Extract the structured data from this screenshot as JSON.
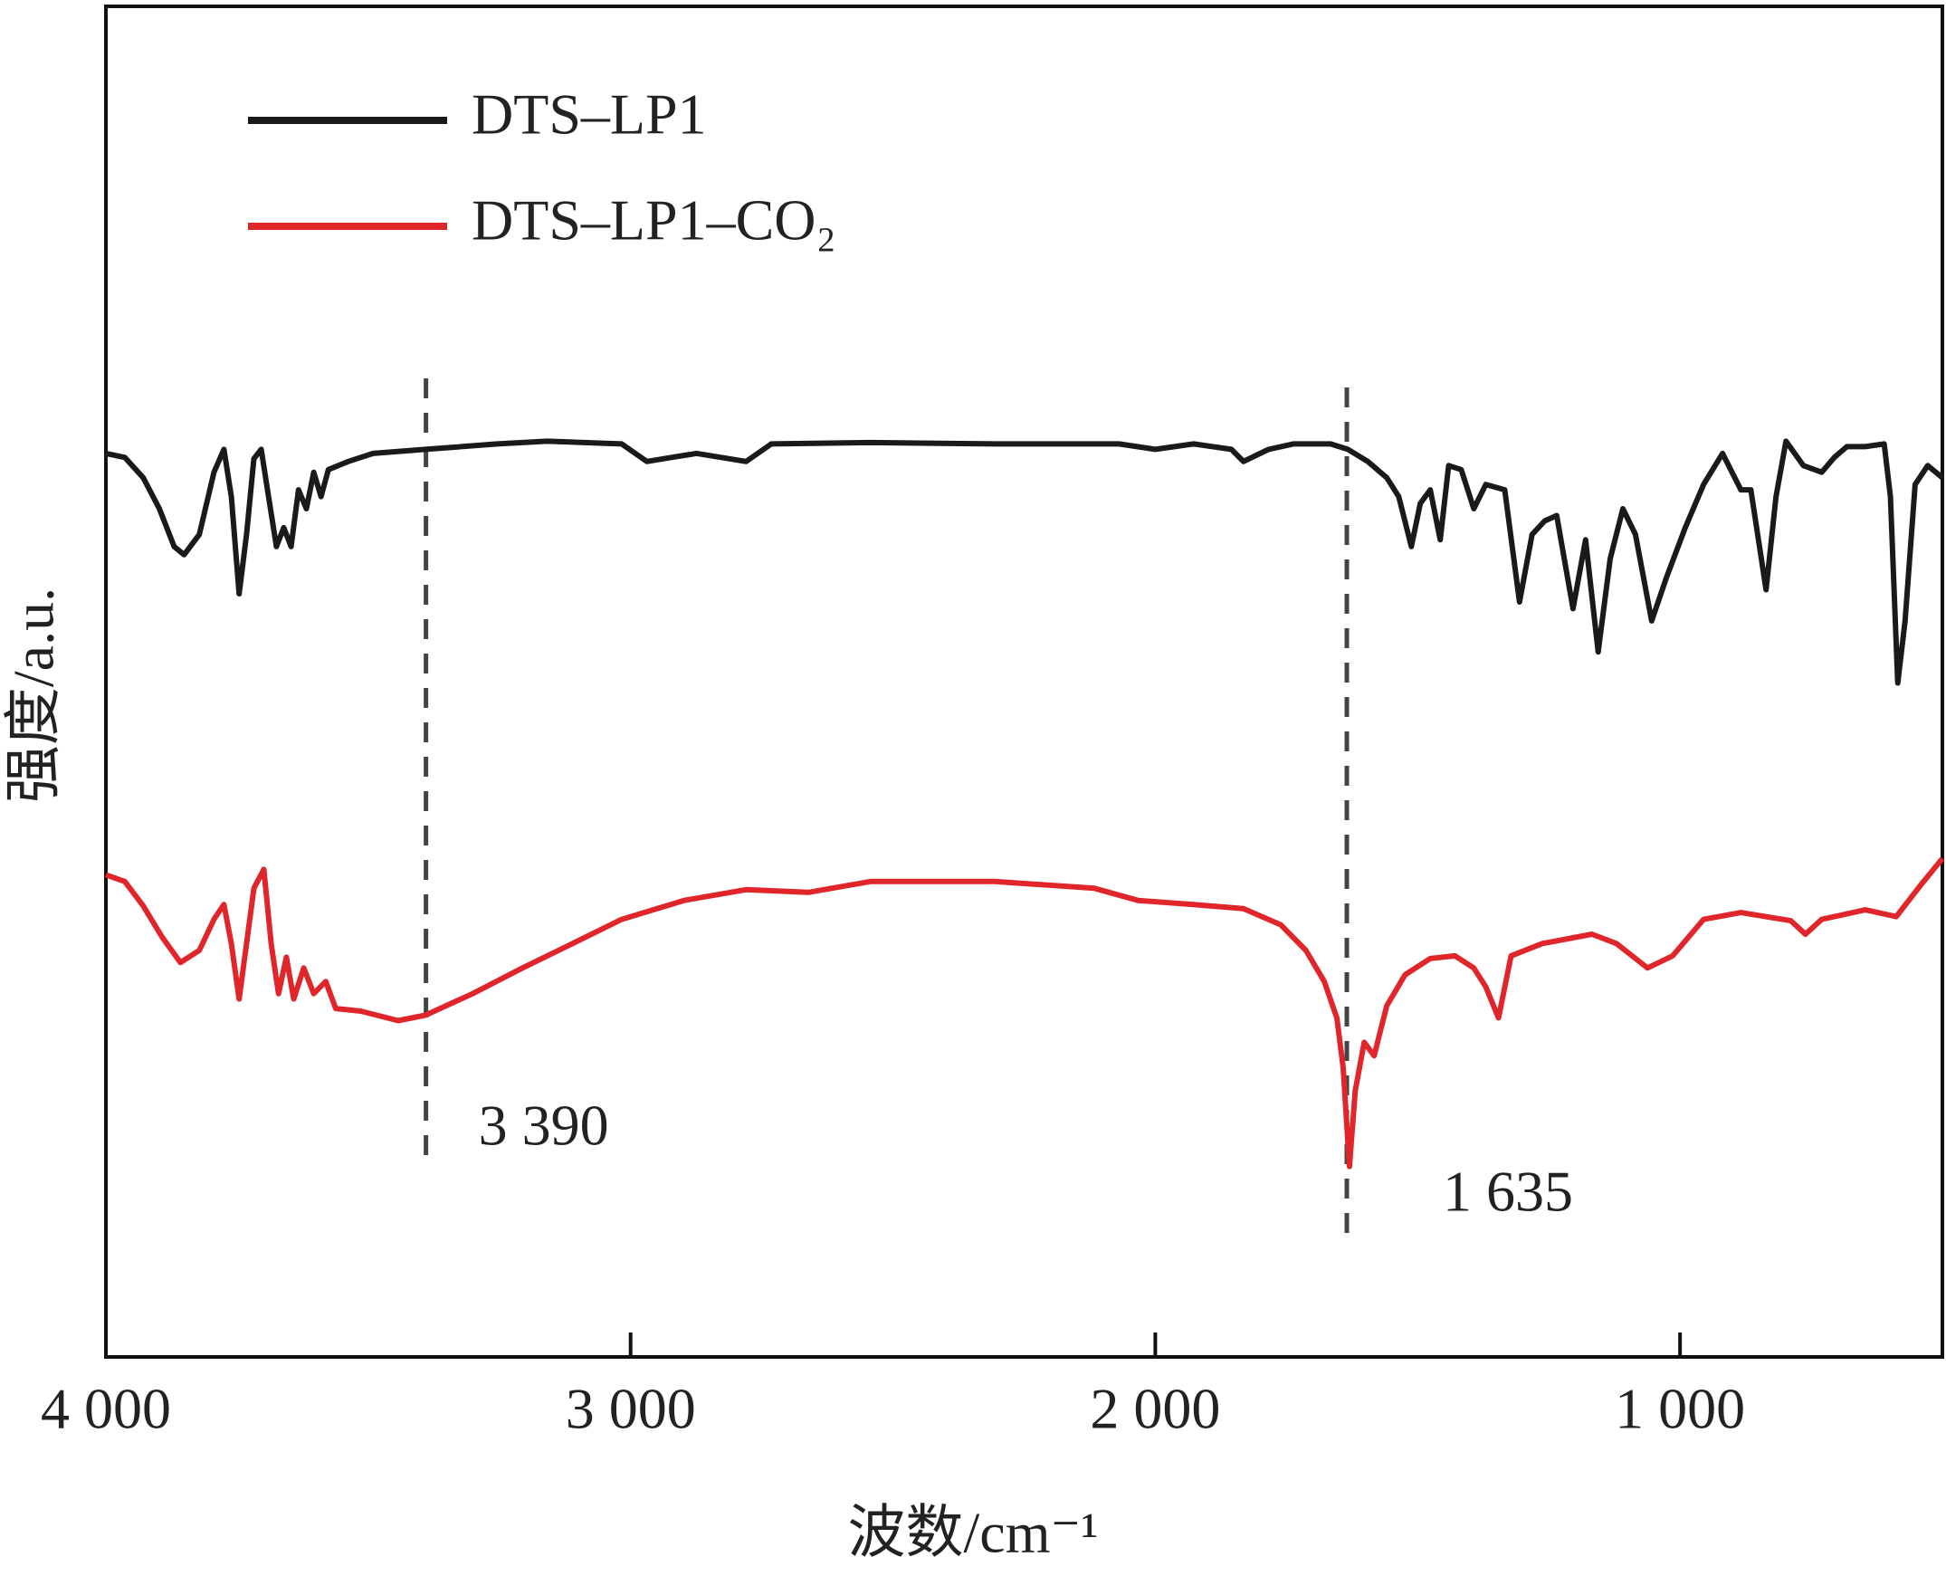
{
  "chart_data": {
    "type": "line",
    "x_label": "波数/cm⁻¹",
    "y_label": "强度/a.u.",
    "xlim": [
      4000,
      500
    ],
    "ylim": [
      0,
      100
    ],
    "xticks": [
      {
        "value": 4000,
        "label": "4 000"
      },
      {
        "value": 3000,
        "label": "3 000"
      },
      {
        "value": 2000,
        "label": "2 000"
      },
      {
        "value": 1000,
        "label": "1 000"
      }
    ],
    "legend": "upper left",
    "annotations": [
      {
        "value": 3390,
        "label": "3 390"
      },
      {
        "value": 1635,
        "label": "1 635"
      }
    ],
    "series": [
      {
        "name": "DTS–LP1",
        "color": "#1a1a1a",
        "x": [
          4000,
          3964,
          3929,
          3898,
          3870,
          3851,
          3822,
          3794,
          3775,
          3761,
          3746,
          3732,
          3718,
          3704,
          3690,
          3675,
          3661,
          3647,
          3633,
          3618,
          3604,
          3590,
          3576,
          3538,
          3491,
          3391,
          3254,
          3159,
          3017,
          2969,
          2922,
          2874,
          2780,
          2732,
          2543,
          2306,
          2069,
          2000,
          1927,
          1855,
          1832,
          1784,
          1737,
          1666,
          1633,
          1595,
          1559,
          1536,
          1512,
          1495,
          1476,
          1457,
          1441,
          1417,
          1393,
          1370,
          1334,
          1306,
          1282,
          1258,
          1235,
          1204,
          1180,
          1156,
          1133,
          1109,
          1085,
          1054,
          1026,
          990,
          955,
          919,
          884,
          865,
          836,
          817,
          798,
          765,
          730,
          706,
          682,
          647,
          611,
          599,
          585,
          571,
          552,
          528,
          500
        ],
        "values": [
          66.9,
          66.6,
          65.1,
          62.8,
          60.0,
          59.4,
          60.9,
          65.5,
          67.2,
          63.7,
          56.5,
          60.9,
          66.5,
          67.2,
          63.7,
          60.0,
          61.4,
          60.0,
          64.2,
          62.8,
          65.5,
          63.7,
          65.7,
          66.3,
          66.9,
          67.2,
          67.6,
          67.8,
          67.6,
          66.3,
          66.6,
          66.9,
          66.3,
          67.6,
          67.7,
          67.6,
          67.6,
          67.2,
          67.6,
          67.2,
          66.3,
          67.2,
          67.6,
          67.6,
          67.2,
          66.3,
          65.1,
          63.7,
          60.0,
          63.2,
          64.2,
          60.5,
          66.0,
          65.7,
          62.8,
          64.6,
          64.2,
          55.9,
          60.9,
          61.9,
          62.3,
          55.4,
          60.5,
          52.2,
          59.1,
          62.8,
          60.9,
          54.5,
          57.7,
          61.4,
          64.6,
          66.9,
          64.2,
          64.2,
          56.8,
          63.7,
          67.8,
          66.0,
          65.5,
          66.6,
          67.4,
          67.4,
          67.6,
          63.7,
          49.9,
          54.5,
          64.6,
          66.0,
          65.1
        ]
      },
      {
        "name": "DTS–LP1–CO₂",
        "color": "#e0262b",
        "x": [
          4000,
          3964,
          3929,
          3893,
          3858,
          3822,
          3794,
          3775,
          3761,
          3746,
          3732,
          3718,
          3699,
          3685,
          3671,
          3656,
          3642,
          3623,
          3604,
          3581,
          3562,
          3514,
          3443,
          3391,
          3301,
          3206,
          3111,
          3017,
          2898,
          2780,
          2661,
          2543,
          2306,
          2116,
          2033,
          1927,
          1832,
          1761,
          1713,
          1678,
          1654,
          1642,
          1630,
          1619,
          1602,
          1583,
          1559,
          1524,
          1476,
          1429,
          1393,
          1370,
          1346,
          1322,
          1263,
          1168,
          1121,
          1062,
          1014,
          955,
          884,
          789,
          761,
          730,
          647,
          588,
          540,
          500
        ],
        "values": [
          35.7,
          35.2,
          33.4,
          31.1,
          29.2,
          30.1,
          32.4,
          33.5,
          30.6,
          26.5,
          30.6,
          34.7,
          36.1,
          30.6,
          26.9,
          29.6,
          26.5,
          28.8,
          26.9,
          27.8,
          25.8,
          25.6,
          24.9,
          25.3,
          26.9,
          28.8,
          30.6,
          32.4,
          33.8,
          34.6,
          34.4,
          35.2,
          35.2,
          34.7,
          33.8,
          33.5,
          33.2,
          32.0,
          30.1,
          27.8,
          25.1,
          21.4,
          14.1,
          19.7,
          23.3,
          22.3,
          26.0,
          28.3,
          29.5,
          29.7,
          28.8,
          27.4,
          25.1,
          29.7,
          30.6,
          31.3,
          30.6,
          28.8,
          29.7,
          32.4,
          32.9,
          32.3,
          31.3,
          32.4,
          33.1,
          32.6,
          35.0,
          36.9
        ]
      }
    ]
  }
}
